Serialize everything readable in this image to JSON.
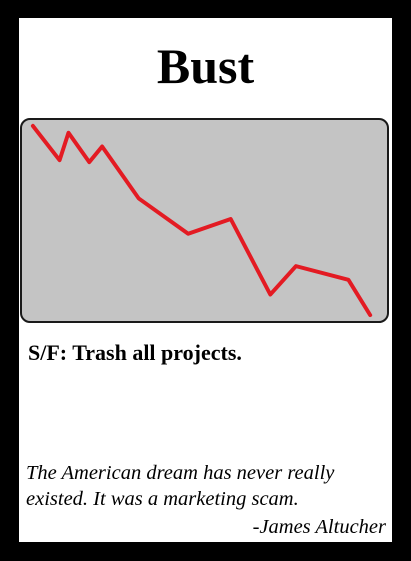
{
  "card": {
    "title": "Bust",
    "ability_text": "S/F: Trash all projects.",
    "flavor_lines": [
      "The American dream has never really",
      "existed. It was a marketing scam."
    ],
    "attribution": "-James Altucher"
  },
  "colors": {
    "border": "#000000",
    "background": "#ffffff",
    "art_background": "#c4c4c4",
    "trend_line": "#e31b23"
  },
  "illustration": {
    "description_icon": "declining-line-graph",
    "trend": "down"
  }
}
